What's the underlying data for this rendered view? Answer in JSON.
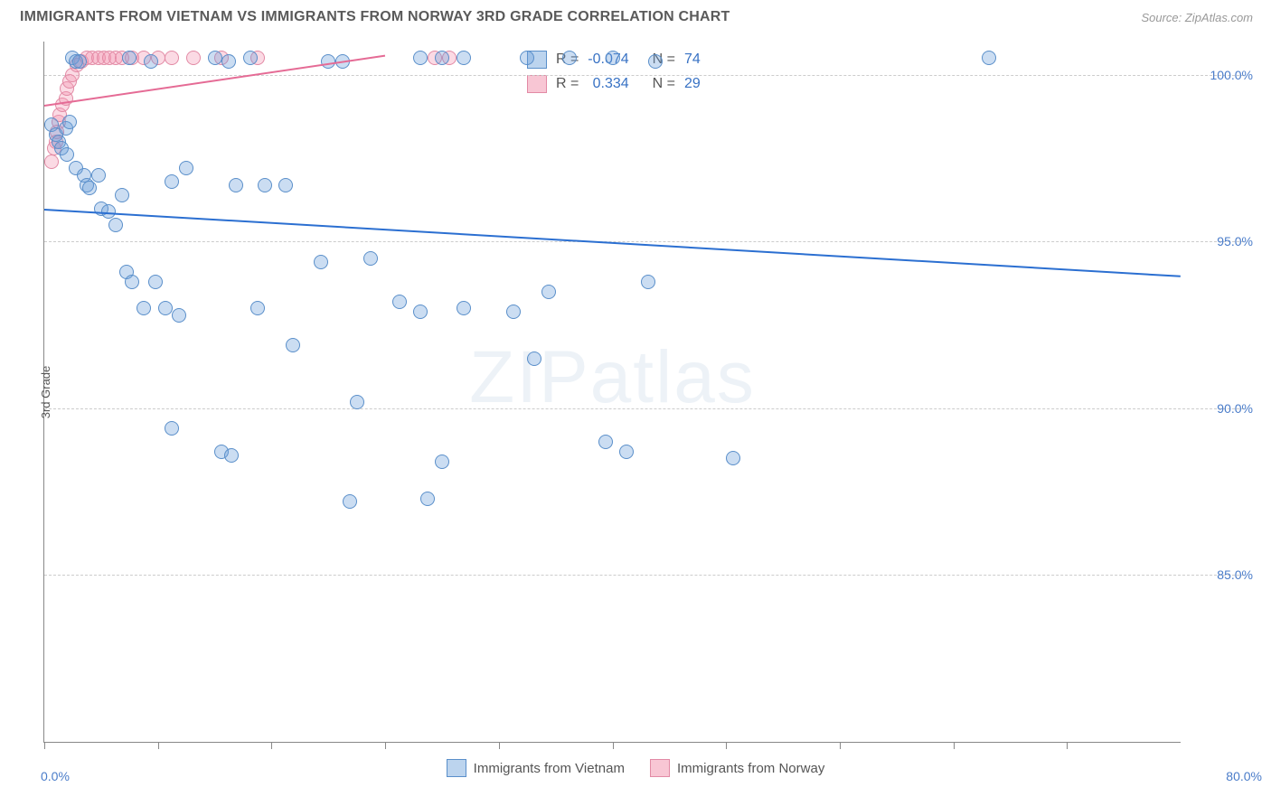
{
  "title": "IMMIGRANTS FROM VIETNAM VS IMMIGRANTS FROM NORWAY 3RD GRADE CORRELATION CHART",
  "source_label": "Source: ZipAtlas.com",
  "watermark": "ZIPatlas",
  "y_axis_title": "3rd Grade",
  "chart": {
    "type": "scatter",
    "xlim": [
      0,
      80
    ],
    "ylim": [
      80,
      101
    ],
    "x_min_label": "0.0%",
    "x_max_label": "80.0%",
    "x_ticks": [
      0,
      8,
      16,
      24,
      32,
      40,
      48,
      56,
      64,
      72
    ],
    "y_ticks": [
      {
        "v": 100,
        "label": "100.0%"
      },
      {
        "v": 95,
        "label": "95.0%"
      },
      {
        "v": 90,
        "label": "90.0%"
      },
      {
        "v": 85,
        "label": "85.0%"
      }
    ],
    "background_color": "#ffffff",
    "grid_color": "#cccccc",
    "marker_radius": 8,
    "marker_stroke_width": 1.2
  },
  "series": [
    {
      "name": "Immigrants from Vietnam",
      "label": "Immigrants from Vietnam",
      "fill": "rgba(106,158,219,0.35)",
      "stroke": "#5a8fca",
      "swatch_fill": "#bcd4ee",
      "swatch_stroke": "#5a8fca",
      "R": "-0.074",
      "N": "74",
      "trend": {
        "x1": 0,
        "y1": 96.0,
        "x2": 80,
        "y2": 94.0,
        "color": "#2b6fd1",
        "width": 2
      },
      "points": [
        [
          0.5,
          98.5
        ],
        [
          0.8,
          98.2
        ],
        [
          1.0,
          98.0
        ],
        [
          1.2,
          97.8
        ],
        [
          1.5,
          98.4
        ],
        [
          1.6,
          97.6
        ],
        [
          1.8,
          98.6
        ],
        [
          2.0,
          100.5
        ],
        [
          2.2,
          100.4
        ],
        [
          2.5,
          100.4
        ],
        [
          6.0,
          100.5
        ],
        [
          7.5,
          100.4
        ],
        [
          12.0,
          100.5
        ],
        [
          13.0,
          100.4
        ],
        [
          14.5,
          100.5
        ],
        [
          20.0,
          100.4
        ],
        [
          21.0,
          100.4
        ],
        [
          26.5,
          100.5
        ],
        [
          28.0,
          100.5
        ],
        [
          29.5,
          100.5
        ],
        [
          34.0,
          100.5
        ],
        [
          37.0,
          100.5
        ],
        [
          40.0,
          100.5
        ],
        [
          43.0,
          100.4
        ],
        [
          66.5,
          100.5
        ],
        [
          2.2,
          97.2
        ],
        [
          2.8,
          97.0
        ],
        [
          3.0,
          96.7
        ],
        [
          3.2,
          96.6
        ],
        [
          3.8,
          97.0
        ],
        [
          4.0,
          96.0
        ],
        [
          4.5,
          95.9
        ],
        [
          5.0,
          95.5
        ],
        [
          5.5,
          96.4
        ],
        [
          9.0,
          96.8
        ],
        [
          10.0,
          97.2
        ],
        [
          13.5,
          96.7
        ],
        [
          15.5,
          96.7
        ],
        [
          17.0,
          96.7
        ],
        [
          5.8,
          94.1
        ],
        [
          6.2,
          93.8
        ],
        [
          7.0,
          93.0
        ],
        [
          7.8,
          93.8
        ],
        [
          8.5,
          93.0
        ],
        [
          9.5,
          92.8
        ],
        [
          15.0,
          93.0
        ],
        [
          19.5,
          94.4
        ],
        [
          23.0,
          94.5
        ],
        [
          25.0,
          93.2
        ],
        [
          26.5,
          92.9
        ],
        [
          29.5,
          93.0
        ],
        [
          33.0,
          92.9
        ],
        [
          35.5,
          93.5
        ],
        [
          42.5,
          93.8
        ],
        [
          17.5,
          91.9
        ],
        [
          22.0,
          90.2
        ],
        [
          34.5,
          91.5
        ],
        [
          9.0,
          89.4
        ],
        [
          12.5,
          88.7
        ],
        [
          13.2,
          88.6
        ],
        [
          28.0,
          88.4
        ],
        [
          39.5,
          89.0
        ],
        [
          41.0,
          88.7
        ],
        [
          48.5,
          88.5
        ],
        [
          21.5,
          87.2
        ],
        [
          27.0,
          87.3
        ]
      ]
    },
    {
      "name": "Immigrants from Norway",
      "label": "Immigrants from Norway",
      "fill": "rgba(244,150,178,0.35)",
      "stroke": "#e28aa5",
      "swatch_fill": "#f8c6d4",
      "swatch_stroke": "#e28aa5",
      "R": "0.334",
      "N": "29",
      "trend": {
        "x1": 0,
        "y1": 99.1,
        "x2": 24,
        "y2": 100.6,
        "color": "#e56b95",
        "width": 2
      },
      "points": [
        [
          0.5,
          97.4
        ],
        [
          0.7,
          97.8
        ],
        [
          0.8,
          98.0
        ],
        [
          0.9,
          98.3
        ],
        [
          1.0,
          98.6
        ],
        [
          1.1,
          98.8
        ],
        [
          1.3,
          99.1
        ],
        [
          1.5,
          99.3
        ],
        [
          1.6,
          99.6
        ],
        [
          1.8,
          99.8
        ],
        [
          2.0,
          100.0
        ],
        [
          2.3,
          100.3
        ],
        [
          2.6,
          100.4
        ],
        [
          3.0,
          100.5
        ],
        [
          3.4,
          100.5
        ],
        [
          3.8,
          100.5
        ],
        [
          4.2,
          100.5
        ],
        [
          4.6,
          100.5
        ],
        [
          5.0,
          100.5
        ],
        [
          5.5,
          100.5
        ],
        [
          6.2,
          100.5
        ],
        [
          7.0,
          100.5
        ],
        [
          8.0,
          100.5
        ],
        [
          9.0,
          100.5
        ],
        [
          10.5,
          100.5
        ],
        [
          12.5,
          100.5
        ],
        [
          15.0,
          100.5
        ],
        [
          27.5,
          100.5
        ],
        [
          28.5,
          100.5
        ]
      ]
    }
  ],
  "legend_top": {
    "R_label": "R =",
    "N_label": "N ="
  },
  "legend_bottom": [
    {
      "series": 0
    },
    {
      "series": 1
    }
  ]
}
